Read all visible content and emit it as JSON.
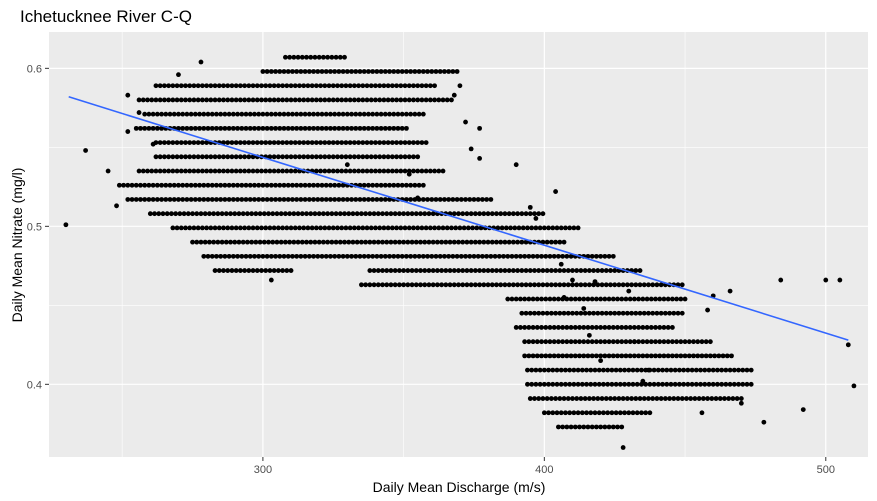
{
  "chart_data": {
    "type": "scatter",
    "title": "Ichetucknee River C-Q",
    "xlabel": "Daily Mean Discharge (m/s)",
    "ylabel": "Daily Mean Nitrate (mg/l)",
    "x_ticks": [
      300,
      400,
      500
    ],
    "y_ticks": [
      0.4,
      0.5,
      0.6
    ],
    "x_tick_labels": [
      "300",
      "400",
      "500"
    ],
    "y_tick_labels": [
      "0.4",
      "0.5",
      "0.6"
    ],
    "xlim": [
      224,
      515
    ],
    "ylim": [
      0.354,
      0.623
    ],
    "grid": true,
    "colors": {
      "panel": "#ebebeb",
      "grid": "#ffffff",
      "points": "#000000",
      "trend": "#3366ff"
    },
    "series": [
      {
        "kind": "points",
        "bands": [
          {
            "y": 0.607,
            "x_start": 308,
            "x_end": 329,
            "step": 1.5
          },
          {
            "y": 0.598,
            "x_start": 300,
            "x_end": 370,
            "step": 1.5
          },
          {
            "y": 0.589,
            "x_start": 262,
            "x_end": 361,
            "step": 1.5
          },
          {
            "y": 0.58,
            "x_start": 256,
            "x_end": 368,
            "step": 1.5
          },
          {
            "y": 0.571,
            "x_start": 258,
            "x_end": 358,
            "step": 1.5
          },
          {
            "y": 0.562,
            "x_start": 255,
            "x_end": 352,
            "step": 1.5
          },
          {
            "y": 0.553,
            "x_start": 262,
            "x_end": 359,
            "step": 1.5
          },
          {
            "y": 0.544,
            "x_start": 262,
            "x_end": 355,
            "step": 1.5
          },
          {
            "y": 0.535,
            "x_start": 256,
            "x_end": 364,
            "step": 1.5
          },
          {
            "y": 0.526,
            "x_start": 249,
            "x_end": 358,
            "step": 1.5
          },
          {
            "y": 0.517,
            "x_start": 252,
            "x_end": 382,
            "step": 1.5
          },
          {
            "y": 0.508,
            "x_start": 260,
            "x_end": 400,
            "step": 1.5
          },
          {
            "y": 0.499,
            "x_start": 268,
            "x_end": 412,
            "step": 1.5
          },
          {
            "y": 0.49,
            "x_start": 275,
            "x_end": 408,
            "step": 1.5
          },
          {
            "y": 0.481,
            "x_start": 279,
            "x_end": 425,
            "step": 1.5
          },
          {
            "y": 0.472,
            "x_start": 283,
            "x_end": 310,
            "step": 1.5
          },
          {
            "y": 0.472,
            "x_start": 338,
            "x_end": 435,
            "step": 1.5
          },
          {
            "y": 0.463,
            "x_start": 335,
            "x_end": 450,
            "step": 1.5
          },
          {
            "y": 0.454,
            "x_start": 387,
            "x_end": 450,
            "step": 1.5
          },
          {
            "y": 0.445,
            "x_start": 392,
            "x_end": 449,
            "step": 1.5
          },
          {
            "y": 0.436,
            "x_start": 390,
            "x_end": 446,
            "step": 1.5
          },
          {
            "y": 0.427,
            "x_start": 393,
            "x_end": 460,
            "step": 1.5
          },
          {
            "y": 0.418,
            "x_start": 393,
            "x_end": 467,
            "step": 1.5
          },
          {
            "y": 0.409,
            "x_start": 394,
            "x_end": 474,
            "step": 1.5
          },
          {
            "y": 0.4,
            "x_start": 394,
            "x_end": 474,
            "step": 1.5
          },
          {
            "y": 0.391,
            "x_start": 395,
            "x_end": 470,
            "step": 1.5
          },
          {
            "y": 0.382,
            "x_start": 400,
            "x_end": 438,
            "step": 1.5
          },
          {
            "y": 0.373,
            "x_start": 405,
            "x_end": 428,
            "step": 1.5
          }
        ],
        "points": [
          [
            230,
            0.501
          ],
          [
            237,
            0.548
          ],
          [
            245,
            0.535
          ],
          [
            248,
            0.513
          ],
          [
            252,
            0.583
          ],
          [
            252,
            0.56
          ],
          [
            256,
            0.572
          ],
          [
            261,
            0.552
          ],
          [
            270,
            0.596
          ],
          [
            278,
            0.604
          ],
          [
            303,
            0.466
          ],
          [
            330,
            0.539
          ],
          [
            352,
            0.533
          ],
          [
            355,
            0.518
          ],
          [
            368,
            0.583
          ],
          [
            370,
            0.589
          ],
          [
            372,
            0.566
          ],
          [
            374,
            0.549
          ],
          [
            377,
            0.562
          ],
          [
            377,
            0.543
          ],
          [
            390,
            0.539
          ],
          [
            395,
            0.512
          ],
          [
            397,
            0.505
          ],
          [
            404,
            0.522
          ],
          [
            406,
            0.476
          ],
          [
            407,
            0.455
          ],
          [
            410,
            0.466
          ],
          [
            414,
            0.448
          ],
          [
            416,
            0.431
          ],
          [
            418,
            0.465
          ],
          [
            420,
            0.415
          ],
          [
            428,
            0.36
          ],
          [
            430,
            0.459
          ],
          [
            432,
            0.427
          ],
          [
            435,
            0.402
          ],
          [
            437,
            0.409
          ],
          [
            456,
            0.382
          ],
          [
            458,
            0.447
          ],
          [
            460,
            0.456
          ],
          [
            466,
            0.459
          ],
          [
            470,
            0.388
          ],
          [
            478,
            0.376
          ],
          [
            484,
            0.466
          ],
          [
            492,
            0.384
          ],
          [
            500,
            0.466
          ],
          [
            505,
            0.466
          ],
          [
            508,
            0.425
          ],
          [
            510,
            0.399
          ]
        ]
      },
      {
        "kind": "trend",
        "points": [
          [
            231,
            0.582
          ],
          [
            508,
            0.428
          ]
        ]
      }
    ]
  }
}
